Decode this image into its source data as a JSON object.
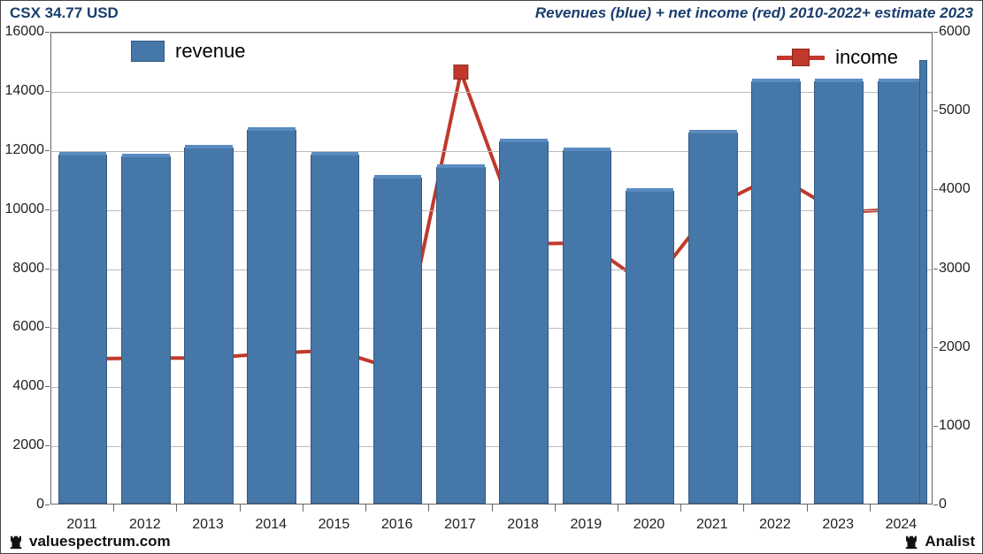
{
  "header": {
    "left": "CSX 34.77 USD",
    "right": "Revenues (blue) + net income (red) 2010-2022+ estimate 2023"
  },
  "footer": {
    "left": "valuespectrum.com",
    "right": "Analist"
  },
  "chart": {
    "type": "bar+line",
    "background_color": "#ffffff",
    "grid_color": "#bbbbbb",
    "border_color": "#666666",
    "bar_color": "#4677a9",
    "bar_border_color": "#345a82",
    "bar_cap_color": "#5a8bc0",
    "line_color": "#c0392b",
    "marker_color": "#c0392b",
    "marker_border_color": "#8a2820",
    "marker_size": 16,
    "line_width": 4,
    "bar_width_ratio": 0.78,
    "legend_revenue": "revenue",
    "legend_income": "income",
    "legend_fontsize": 22,
    "axis_fontsize": 16,
    "text_color": "#222222",
    "header_color": "#1a3e6e",
    "left_axis": {
      "min": 0,
      "max": 16000,
      "step": 2000
    },
    "right_axis": {
      "min": 0,
      "max": 6000,
      "step": 1000
    },
    "x_labels": [
      "2011",
      "2012",
      "2013",
      "2014",
      "2015",
      "2016",
      "2017",
      "2018",
      "2019",
      "2020",
      "2021",
      "2022",
      "2023",
      "2024"
    ],
    "revenue": [
      11800,
      11750,
      12050,
      12650,
      11800,
      11050,
      11400,
      12250,
      11950,
      10600,
      12550,
      14300,
      14300,
      14300
    ],
    "revenue_last_extra": 15000,
    "income": [
      1860,
      1870,
      1870,
      1930,
      1970,
      1720,
      5500,
      3320,
      3330,
      2770,
      3790,
      4190,
      3720,
      3760
    ]
  }
}
